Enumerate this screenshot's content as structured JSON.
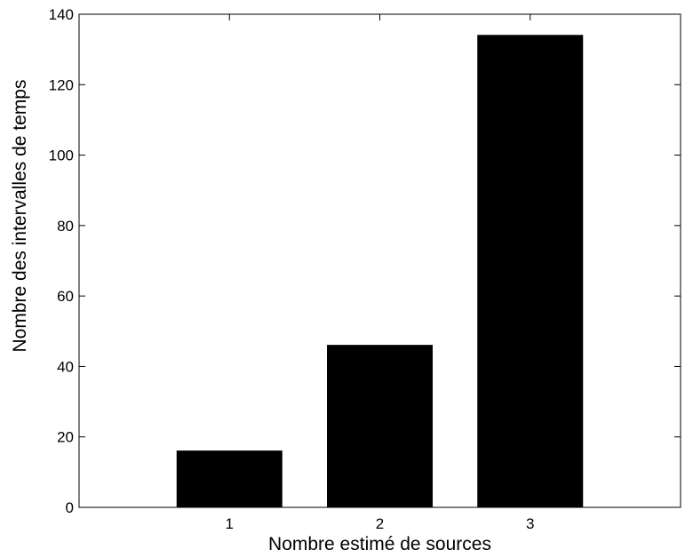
{
  "chart_data": {
    "type": "bar",
    "title": "",
    "xlabel": "Nombre estimé de sources",
    "ylabel": "Nombre des intervalles de temps",
    "categories": [
      "1",
      "2",
      "3"
    ],
    "values": [
      16,
      46,
      134
    ],
    "ylim": [
      0,
      140
    ],
    "yticks": [
      0,
      20,
      40,
      60,
      80,
      100,
      120,
      140
    ],
    "grid": false,
    "legend": "none",
    "colors": {
      "bar": "#000000",
      "axes": "#000000",
      "background": "#ffffff"
    }
  }
}
